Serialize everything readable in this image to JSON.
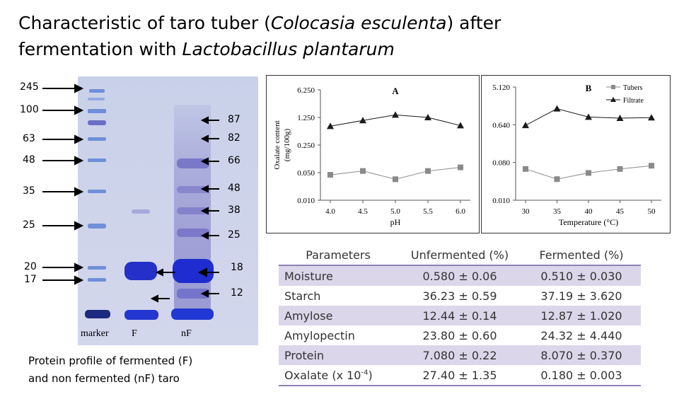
{
  "title": {
    "line1_a": "Characteristic of taro tuber (",
    "line1_italic": "Colocasia esculenta",
    "line1_b": ") after",
    "line2_a": "fermentation with ",
    "line2_italic": "Lactobacillus plantarum"
  },
  "gel": {
    "left_markers": [
      "245",
      "100",
      "63",
      "48",
      "35",
      "25",
      "20",
      "17"
    ],
    "right_markers": [
      "87",
      "82",
      "66",
      "48",
      "38",
      "25",
      "18",
      "12"
    ],
    "lanes": [
      "marker",
      "F",
      "nF"
    ],
    "caption_line1": "Protein profile of fermented (F)",
    "caption_line2": "and non fermented (nF) taro"
  },
  "chart_data": [
    {
      "type": "line",
      "title": "A",
      "xlabel": "pH",
      "ylabel_line1": "Oxalate content",
      "ylabel_line2": "(mg/100g)",
      "y_scale": "log",
      "x": [
        "4.0",
        "4.5",
        "5.0",
        "5.5",
        "6.0"
      ],
      "y_ticks": [
        "6.250",
        "1.250",
        "0.250",
        "0.050",
        "0.010"
      ],
      "ylim": [
        0.01,
        6.25
      ],
      "series": [
        {
          "name": "Filtrate",
          "marker": "triangle",
          "values": [
            0.75,
            1.05,
            1.45,
            1.25,
            0.78
          ]
        },
        {
          "name": "Tubers",
          "marker": "square",
          "values": [
            0.044,
            0.055,
            0.034,
            0.055,
            0.068
          ]
        }
      ]
    },
    {
      "type": "line",
      "title": "B",
      "xlabel": "Temperature (°C)",
      "y_scale": "log",
      "x": [
        "30",
        "35",
        "40",
        "45",
        "50"
      ],
      "y_ticks": [
        "5.120",
        "0.640",
        "0.080",
        "0.010"
      ],
      "ylim": [
        0.01,
        5.12
      ],
      "legend": [
        "Tubers",
        "Filtrate"
      ],
      "series": [
        {
          "name": "Filtrate",
          "marker": "triangle",
          "values": [
            0.62,
            1.55,
            0.98,
            0.92,
            0.95
          ]
        },
        {
          "name": "Tubers",
          "marker": "square",
          "values": [
            0.056,
            0.032,
            0.045,
            0.056,
            0.067
          ]
        }
      ]
    }
  ],
  "table": {
    "headers": [
      "Parameters",
      "Unfermented (%)",
      "Fermented (%)"
    ],
    "rows": [
      {
        "param": "Moisture",
        "unfermented": "0.580 ± 0.06",
        "fermented": "0.510 ± 0.030"
      },
      {
        "param": "Starch",
        "unfermented": "36.23 ± 0.59",
        "fermented": "37.19 ± 3.620"
      },
      {
        "param": "Amylose",
        "unfermented": "12.44 ± 0.14",
        "fermented": "12.87 ± 1.020"
      },
      {
        "param": "Amylopectin",
        "unfermented": "23.80 ± 0.60",
        "fermented": "24.32 ± 4.440"
      },
      {
        "param": "Protein",
        "unfermented": "7.080 ± 0.22",
        "fermented": "8.070 ± 0.370"
      },
      {
        "param_base": "Oxalate (x 10",
        "param_sup": "-4",
        "param_close": ")",
        "unfermented": "27.40 ± 1.35",
        "fermented": "0.180 ± 0.003"
      }
    ]
  },
  "colors": {
    "table_shade": "#dcd6ea",
    "table_rule": "#9080b8",
    "series_filtrate": "#1a1a1a",
    "series_tubers": "#8a8a8a"
  }
}
